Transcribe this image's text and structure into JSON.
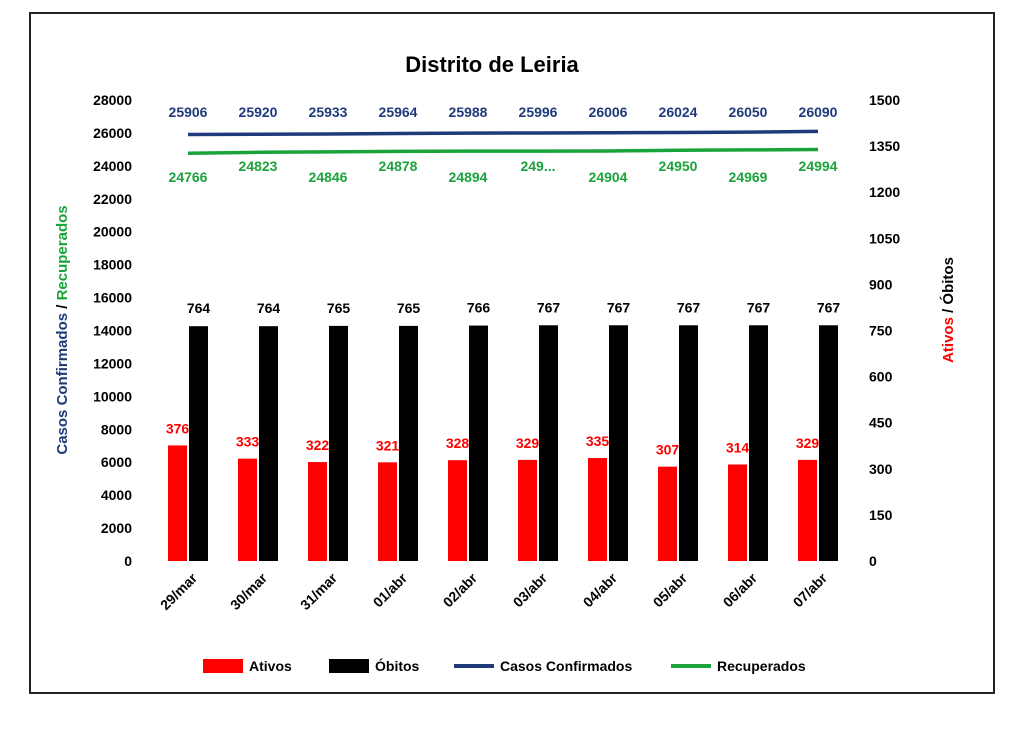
{
  "chart_data": {
    "type": "bar",
    "title": "Distrito de Leiria",
    "categories": [
      "29/mar",
      "30/mar",
      "31/mar",
      "01/abr",
      "02/abr",
      "03/abr",
      "04/abr",
      "05/abr",
      "06/abr",
      "07/abr"
    ],
    "series": [
      {
        "name": "Ativos",
        "type": "bar",
        "axis": "right",
        "color": "#ff0000",
        "values": [
          376,
          333,
          322,
          321,
          328,
          329,
          335,
          307,
          314,
          329
        ]
      },
      {
        "name": "Óbitos",
        "type": "bar",
        "axis": "right",
        "color": "#000000",
        "values": [
          764,
          764,
          765,
          765,
          766,
          767,
          767,
          767,
          767,
          767
        ]
      },
      {
        "name": "Casos Confirmados",
        "type": "line",
        "axis": "left",
        "color": "#1f3a7a",
        "values": [
          25906,
          25920,
          25933,
          25964,
          25988,
          25996,
          26006,
          26024,
          26050,
          26090
        ]
      },
      {
        "name": "Recuperados",
        "type": "line",
        "axis": "left",
        "color": "#1aa33a",
        "values": [
          24766,
          24823,
          24846,
          24878,
          24894,
          24898,
          24904,
          24950,
          24969,
          24994
        ],
        "labels": [
          "24766",
          "24823",
          "24846",
          "24878",
          "24894",
          "249...",
          "24904",
          "24950",
          "24969",
          "24994"
        ]
      }
    ],
    "y_left": {
      "label_parts": [
        {
          "text": "Casos Confirmados",
          "color": "#1f3a7a"
        },
        {
          "text": " / ",
          "color": "#000000"
        },
        {
          "text": "Recuperados",
          "color": "#1aa33a"
        }
      ],
      "ylim": [
        0,
        28000
      ],
      "ticks": [
        "0",
        "2000",
        "4000",
        "6000",
        "8000",
        "10000",
        "12000",
        "14000",
        "16000",
        "18000",
        "20000",
        "22000",
        "24000",
        "26000",
        "28000"
      ]
    },
    "y_right": {
      "label_parts": [
        {
          "text": "Ativos",
          "color": "#ff0000"
        },
        {
          "text": " / ",
          "color": "#000000"
        },
        {
          "text": "Óbitos",
          "color": "#000000"
        }
      ],
      "ylim": [
        0,
        1500
      ],
      "ticks": [
        "0",
        "150",
        "300",
        "450",
        "600",
        "750",
        "900",
        "1050",
        "1200",
        "1350",
        "1500"
      ]
    },
    "grid": false,
    "legend_position": "bottom"
  }
}
